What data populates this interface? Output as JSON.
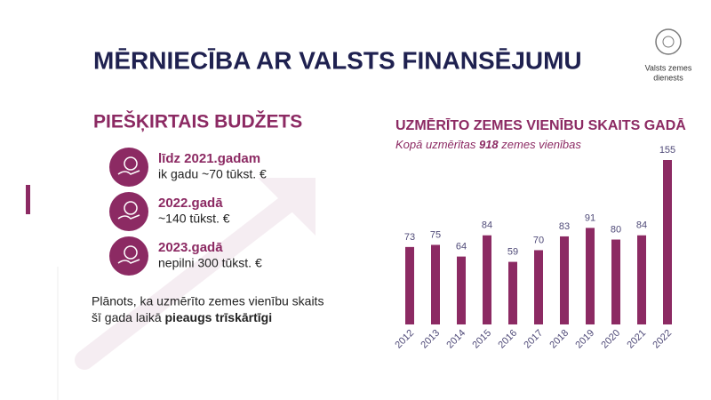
{
  "header": {
    "title": "MĒRNIECĪBA AR VALSTS FINANSĒJUMU",
    "logo_lines": [
      "Valsts zemes",
      "dienests"
    ]
  },
  "budget": {
    "title": "PIEŠĶIRTAIS BUDŽETS",
    "items": [
      {
        "heading": "līdz 2021.gadam",
        "text": "ik gadu ~70 tūkst. €"
      },
      {
        "heading": "2022.gadā",
        "text": "~140 tūkst. €"
      },
      {
        "heading": "2023.gadā",
        "text": "nepilni 300 tūkst. €"
      }
    ],
    "note_lines": [
      "Plānots, ka uzmērīto zemes vienību skaits",
      "šī gada laikā"
    ],
    "note_bold": "pieaugs trīskārtīgi"
  },
  "chart_data": {
    "type": "bar",
    "title": "UZMĒRĪTO ZEMES VIENĪBU SKAITS GADĀ",
    "subtitle": {
      "before": "Kopā uzmērītas",
      "highlight": "918",
      "after": "zemes vienības"
    },
    "categories": [
      "2012",
      "2013",
      "2014",
      "2015",
      "2016",
      "2017",
      "2018",
      "2019",
      "2020",
      "2021",
      "2022"
    ],
    "values": [
      73,
      75,
      64,
      84,
      59,
      70,
      83,
      91,
      80,
      84,
      155
    ],
    "color": "#8c2a63"
  }
}
